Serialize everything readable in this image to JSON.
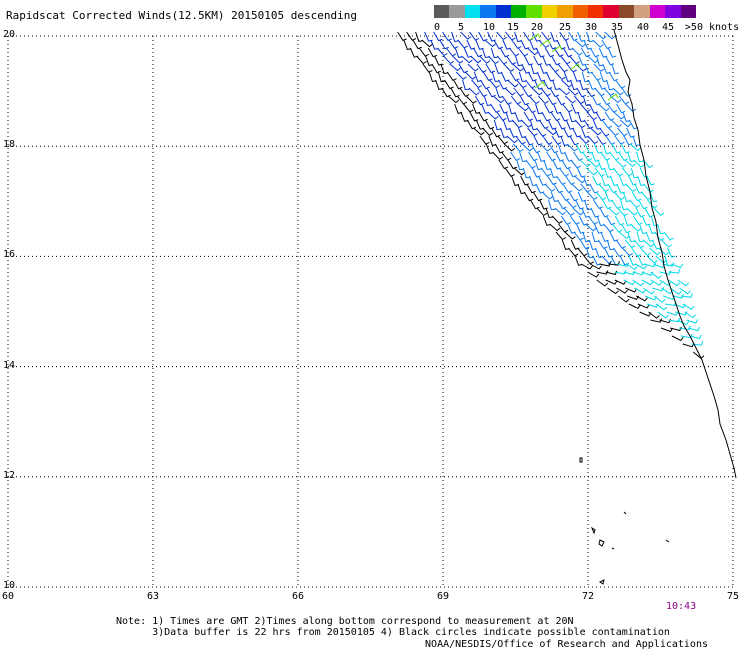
{
  "title": "Rapidscat Corrected Winds(12.5KM) 20150105 descending",
  "color_scale": {
    "colors": [
      "#5a5a5a",
      "#9a9a9a",
      "#00e0f0",
      "#0a78f0",
      "#0030d0",
      "#00b000",
      "#60e000",
      "#f0d000",
      "#f0a000",
      "#f06000",
      "#f03000",
      "#e00030",
      "#8a4a2a",
      "#d0a080",
      "#d000d0",
      "#8000e0",
      "#600080"
    ],
    "labels": [
      "0",
      "5",
      "10",
      "15",
      "20",
      "25",
      "30",
      "35",
      "40",
      "45",
      ">50 knots"
    ]
  },
  "map": {
    "lon_range": [
      60,
      75
    ],
    "lat_range": [
      10,
      20
    ],
    "lon_ticks": [
      "60",
      "63",
      "66",
      "69",
      "72",
      "75"
    ],
    "lat_ticks": [
      "20",
      "18",
      "16",
      "14",
      "12",
      "10"
    ],
    "grid": "dotted"
  },
  "timestamp": "10:43",
  "notes": [
    "Note: 1) Times are GMT 2)Times along bottom correspond to measurement at 20N",
    "      3)Data buffer is 22 hrs from 20150105 4) Black circles indicate possible contamination"
  ],
  "credit": "NOAA/NESDIS/Office of Research and Applications",
  "icons": [
    "wind-barb-icon",
    "coastline-icon"
  ]
}
